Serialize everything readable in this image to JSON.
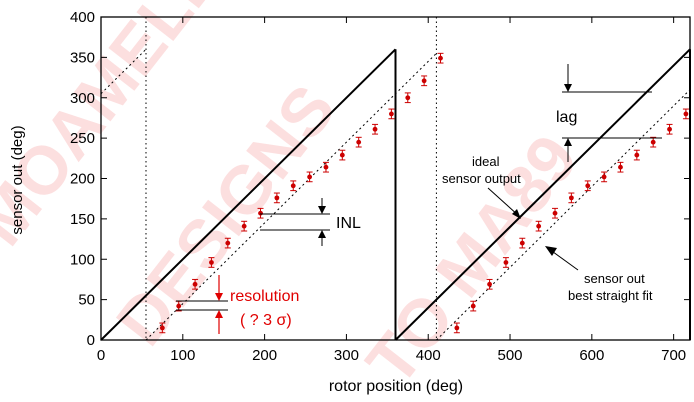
{
  "chart_data": {
    "type": "line",
    "xlabel": "rotor position (deg)",
    "ylabel": "sensor out (deg)",
    "xlim": [
      0,
      720
    ],
    "ylim": [
      0,
      400
    ],
    "x_ticks": [
      0,
      100,
      200,
      300,
      400,
      500,
      600,
      700
    ],
    "y_ticks": [
      0,
      50,
      100,
      150,
      200,
      250,
      300,
      350,
      400
    ],
    "ideal_segments": [
      {
        "x": [
          0,
          360
        ],
        "y": [
          0,
          360
        ]
      },
      {
        "x": [
          360,
          720
        ],
        "y": [
          0,
          360
        ]
      }
    ],
    "best_fit_segments": [
      {
        "x": [
          55,
          410
        ],
        "y": [
          0,
          355
        ]
      },
      {
        "x": [
          0,
          55
        ],
        "y": [
          305,
          360
        ]
      },
      {
        "x": [
          410,
          720
        ],
        "y": [
          0,
          310
        ]
      }
    ],
    "sensor_out": {
      "x": [
        75,
        95,
        115,
        135,
        155,
        175,
        195,
        215,
        235,
        255,
        275,
        295,
        315,
        335,
        355,
        375,
        395,
        415,
        435,
        455,
        475,
        495,
        515,
        535,
        555,
        575,
        595,
        615,
        635,
        655,
        675,
        695,
        715
      ],
      "y": [
        15,
        42,
        69,
        96,
        120,
        141,
        157,
        176,
        191,
        202,
        214,
        229,
        245,
        261,
        280,
        300,
        321,
        349,
        15,
        42,
        69,
        96,
        120,
        141,
        157,
        176,
        191,
        202,
        214,
        229,
        245,
        261,
        280
      ],
      "error": 6
    },
    "vlines_x": [
      55,
      410
    ],
    "annotations": {
      "inl": "INL",
      "lag": "lag",
      "resolution": "resolution",
      "resolution_sigma": "( ? 3 σ)",
      "ideal_line1": "ideal",
      "ideal_line2": "sensor output",
      "fit_line1": "sensor out",
      "fit_line2": "best straight fit"
    },
    "colors": {
      "data": "#cc0000",
      "ideal": "#000000",
      "fit": "#000000",
      "resolution": "#e00000"
    }
  },
  "watermark": [
    "MOAMELEAN",
    "DESIGNS",
    "TO MA89"
  ]
}
